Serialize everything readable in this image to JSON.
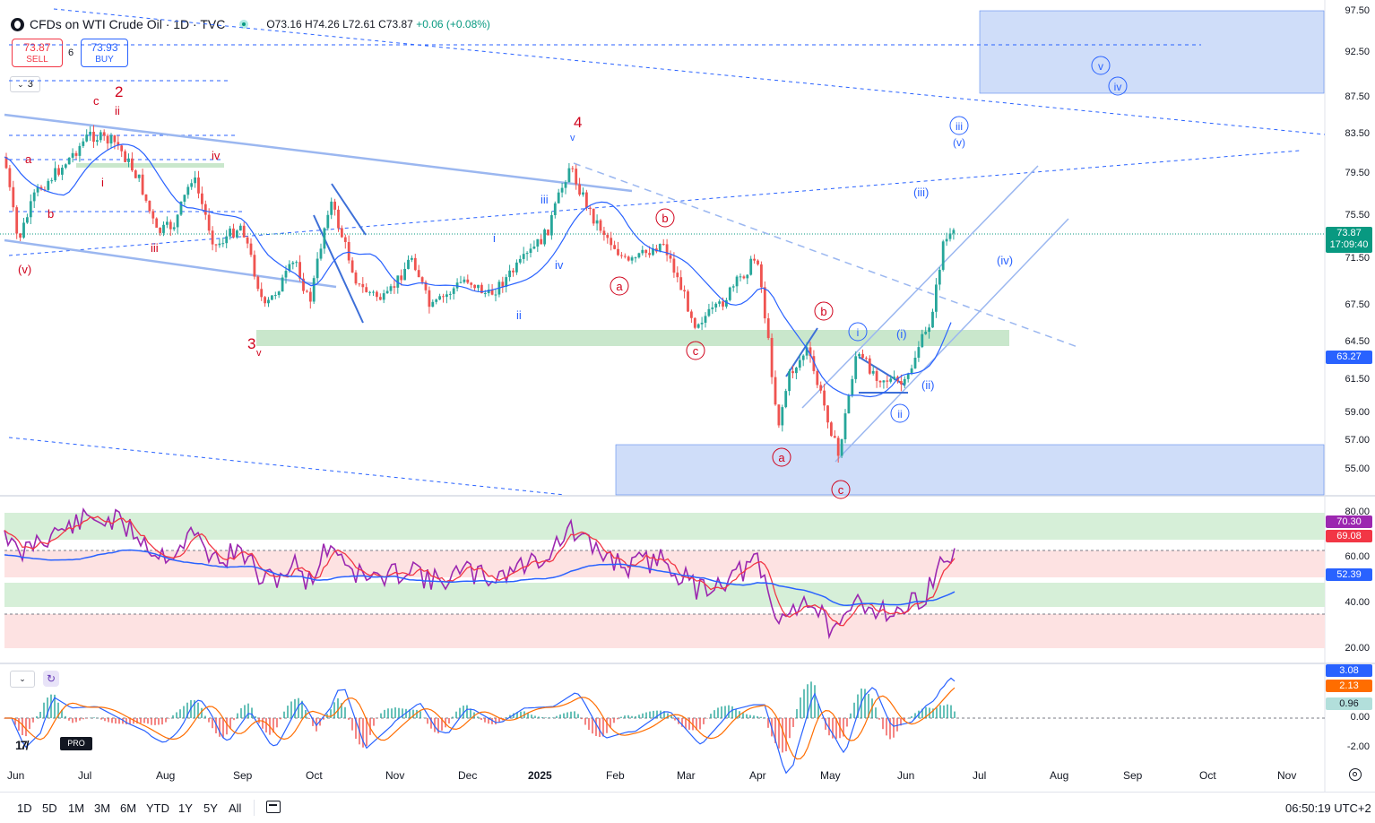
{
  "header": {
    "symbol_title": "CFDs on WTI Crude Oil · 1D · TVC",
    "open": "O73.16",
    "high": "H74.26",
    "low": "L72.61",
    "close": "C73.87",
    "change": "+0.06 (+0.08%)"
  },
  "trade": {
    "sell_price": "73.87",
    "sell_label": "SELL",
    "spread": "6",
    "buy_price": "73.93",
    "buy_label": "BUY"
  },
  "indicator_toggle": {
    "count": "3"
  },
  "price_axis": {
    "labels": [
      "97.50",
      "92.50",
      "87.50",
      "83.50",
      "79.50",
      "75.50",
      "71.50",
      "67.50",
      "64.50",
      "61.50",
      "59.00",
      "57.00",
      "55.00"
    ],
    "current_price": "73.87",
    "countdown": "17:09:40",
    "ma_value": "63.27"
  },
  "rsi_axis": {
    "labels": [
      "80.00",
      "60.00",
      "40.00",
      "20.00"
    ],
    "rsi_value": "70.30",
    "rsi_ma_value": "69.08",
    "ma_value": "52.39"
  },
  "macd_axis": {
    "labels": [
      "0.00",
      "-2.00"
    ],
    "macd": "3.08",
    "signal": "2.13",
    "histogram": "0.96"
  },
  "time_axis": {
    "labels": [
      "Jun",
      "Jul",
      "Aug",
      "Sep",
      "Oct",
      "Nov",
      "Dec",
      "2025",
      "Feb",
      "Mar",
      "Apr",
      "May",
      "Jun",
      "Jul",
      "Aug",
      "Sep",
      "Oct",
      "Nov"
    ]
  },
  "timeframes": [
    "1D",
    "5D",
    "1M",
    "3M",
    "6M",
    "YTD",
    "1Y",
    "5Y",
    "All"
  ],
  "clock": "06:50:19 UTC+2",
  "wave_labels": {
    "red": [
      "c",
      "2",
      "ii",
      "a",
      "b",
      "i",
      "iv",
      "iii",
      "(v)",
      "3",
      "v",
      "4",
      "v",
      "iii",
      "i",
      "iv",
      "ii",
      "b",
      "a",
      "c",
      "b",
      "a",
      "c"
    ],
    "blue": [
      "(iii)",
      "(v)",
      "(iv)",
      "i",
      "(i)",
      "(ii)",
      "ii",
      "v",
      "iv"
    ]
  },
  "colors": {
    "up": "#26a69a",
    "down": "#ef5350",
    "ma_blue": "#2962ff",
    "rsi_purple": "#9c27b0",
    "rsi_ma_red": "#f23645",
    "box_blue": "#cfddf9",
    "zone_green": "#cfe9d1",
    "zone_red": "#fde0e0"
  }
}
